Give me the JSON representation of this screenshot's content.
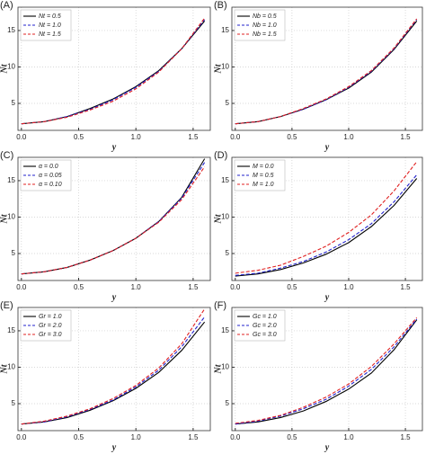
{
  "chart_data": [
    {
      "type": "line",
      "label": "(A)",
      "xlabel": "y",
      "ylabel": "Nt",
      "x": [
        0,
        0.2,
        0.4,
        0.6,
        0.8,
        1.0,
        1.2,
        1.4,
        1.6
      ],
      "xlim": [
        -0.03,
        1.65
      ],
      "ylim": [
        1.3,
        18.2
      ],
      "grid": true,
      "legend": "upper-left",
      "xticks": [
        {
          "value": 0,
          "label": "0.0"
        },
        {
          "value": 0.5,
          "label": "0.5"
        },
        {
          "value": 1,
          "label": "1.0"
        },
        {
          "value": 1.5,
          "label": "1.5"
        }
      ],
      "yticks": [
        5,
        10,
        15
      ],
      "series": [
        {
          "name": "Nt = 0.5",
          "color": "#000000",
          "dash": "solid",
          "values": [
            2.2,
            2.5,
            3.2,
            4.3,
            5.6,
            7.3,
            9.5,
            12.5,
            16.3
          ]
        },
        {
          "name": "Nt = 1.0",
          "color": "#2222cc",
          "dash": "dashed",
          "values": [
            2.2,
            2.5,
            3.2,
            4.2,
            5.5,
            7.2,
            9.4,
            12.5,
            16.5
          ]
        },
        {
          "name": "Nt = 1.5",
          "color": "#e02020",
          "dash": "dashed",
          "values": [
            2.2,
            2.5,
            3.1,
            4.1,
            5.3,
            7.0,
            9.3,
            12.5,
            16.7
          ]
        }
      ]
    },
    {
      "type": "line",
      "label": "(B)",
      "xlabel": "y",
      "ylabel": "Nt",
      "x": [
        0,
        0.2,
        0.4,
        0.6,
        0.8,
        1.0,
        1.2,
        1.4,
        1.6
      ],
      "xlim": [
        -0.03,
        1.65
      ],
      "ylim": [
        1.3,
        18.2
      ],
      "grid": true,
      "legend": "upper-left",
      "xticks": [
        {
          "value": 0,
          "label": "0.0"
        },
        {
          "value": 0.5,
          "label": "0.5"
        },
        {
          "value": 1,
          "label": "1.0"
        },
        {
          "value": 1.5,
          "label": "1.5"
        }
      ],
      "yticks": [
        5,
        10,
        15
      ],
      "series": [
        {
          "name": "Nb = 0.5",
          "color": "#000000",
          "dash": "solid",
          "values": [
            2.2,
            2.5,
            3.2,
            4.2,
            5.5,
            7.1,
            9.3,
            12.4,
            16.3
          ]
        },
        {
          "name": "Nb = 1.0",
          "color": "#2222cc",
          "dash": "dashed",
          "values": [
            2.2,
            2.5,
            3.2,
            4.2,
            5.5,
            7.2,
            9.4,
            12.5,
            16.5
          ]
        },
        {
          "name": "Nb = 1.5",
          "color": "#e02020",
          "dash": "dashed",
          "values": [
            2.2,
            2.5,
            3.2,
            4.3,
            5.6,
            7.3,
            9.5,
            12.6,
            16.6
          ]
        }
      ]
    },
    {
      "type": "line",
      "label": "(C)",
      "xlabel": "y",
      "ylabel": "Nt",
      "x": [
        0,
        0.2,
        0.4,
        0.6,
        0.8,
        1.0,
        1.2,
        1.4,
        1.6
      ],
      "xlim": [
        -0.03,
        1.65
      ],
      "ylim": [
        1.3,
        18.2
      ],
      "grid": true,
      "legend": "upper-left",
      "xticks": [
        {
          "value": 0,
          "label": "0.0"
        },
        {
          "value": 0.5,
          "label": "0.5"
        },
        {
          "value": 1,
          "label": "1.0"
        },
        {
          "value": 1.5,
          "label": "1.5"
        }
      ],
      "yticks": [
        5,
        10,
        15
      ],
      "series": [
        {
          "name": "α = 0.0",
          "color": "#000000",
          "dash": "solid",
          "values": [
            2.2,
            2.5,
            3.1,
            4.1,
            5.4,
            7.1,
            9.4,
            12.7,
            18.0
          ]
        },
        {
          "name": "α = 0.05",
          "color": "#2222cc",
          "dash": "dashed",
          "values": [
            2.2,
            2.5,
            3.1,
            4.1,
            5.4,
            7.1,
            9.4,
            12.6,
            17.5
          ]
        },
        {
          "name": "α = 0.10",
          "color": "#e02020",
          "dash": "dashed",
          "values": [
            2.2,
            2.5,
            3.1,
            4.1,
            5.4,
            7.1,
            9.3,
            12.4,
            16.9
          ]
        }
      ]
    },
    {
      "type": "line",
      "label": "(D)",
      "xlabel": "y",
      "ylabel": "Nt",
      "x": [
        0,
        0.2,
        0.4,
        0.6,
        0.8,
        1.0,
        1.2,
        1.4,
        1.6
      ],
      "xlim": [
        -0.03,
        1.65
      ],
      "ylim": [
        1.3,
        18.2
      ],
      "grid": true,
      "legend": "upper-left",
      "xticks": [
        {
          "value": 0,
          "label": "0.0"
        },
        {
          "value": 0.5,
          "label": "0.5"
        },
        {
          "value": 1,
          "label": "1.0"
        },
        {
          "value": 1.5,
          "label": "1.5"
        }
      ],
      "yticks": [
        5,
        10,
        15
      ],
      "series": [
        {
          "name": "M = 0.0",
          "color": "#000000",
          "dash": "solid",
          "values": [
            1.9,
            2.2,
            2.8,
            3.7,
            4.9,
            6.5,
            8.7,
            11.6,
            15.3
          ]
        },
        {
          "name": "M = 0.5",
          "color": "#2222cc",
          "dash": "dashed",
          "values": [
            2.0,
            2.3,
            3.0,
            3.9,
            5.2,
            6.9,
            9.1,
            12.1,
            15.8
          ]
        },
        {
          "name": "M = 1.0",
          "color": "#e02020",
          "dash": "dashed",
          "values": [
            2.3,
            2.7,
            3.4,
            4.6,
            6.0,
            7.9,
            10.3,
            13.6,
            17.6
          ]
        }
      ]
    },
    {
      "type": "line",
      "label": "(E)",
      "xlabel": "y",
      "ylabel": "Nt",
      "x": [
        0,
        0.2,
        0.4,
        0.6,
        0.8,
        1.0,
        1.2,
        1.4,
        1.6
      ],
      "xlim": [
        -0.03,
        1.65
      ],
      "ylim": [
        1.3,
        18.2
      ],
      "grid": true,
      "legend": "upper-left",
      "xticks": [
        {
          "value": 0,
          "label": "0.0"
        },
        {
          "value": 0.5,
          "label": "0.5"
        },
        {
          "value": 1,
          "label": "1.0"
        },
        {
          "value": 1.5,
          "label": "1.5"
        }
      ],
      "yticks": [
        5,
        10,
        15
      ],
      "series": [
        {
          "name": "Gr = 1.0",
          "color": "#000000",
          "dash": "solid",
          "values": [
            2.2,
            2.5,
            3.1,
            4.1,
            5.4,
            7.1,
            9.3,
            12.3,
            16.2
          ]
        },
        {
          "name": "Gr = 2.0",
          "color": "#2222cc",
          "dash": "dashed",
          "values": [
            2.2,
            2.5,
            3.2,
            4.2,
            5.5,
            7.3,
            9.6,
            12.8,
            16.9
          ]
        },
        {
          "name": "Gr = 3.0",
          "color": "#e02020",
          "dash": "dashed",
          "values": [
            2.2,
            2.6,
            3.3,
            4.3,
            5.7,
            7.5,
            9.9,
            13.2,
            18.0
          ]
        }
      ]
    },
    {
      "type": "line",
      "label": "(F)",
      "xlabel": "y",
      "ylabel": "Nt",
      "x": [
        0,
        0.2,
        0.4,
        0.6,
        0.8,
        1.0,
        1.2,
        1.4,
        1.6
      ],
      "xlim": [
        -0.03,
        1.65
      ],
      "ylim": [
        1.3,
        18.2
      ],
      "grid": true,
      "legend": "upper-left",
      "xticks": [
        {
          "value": 0,
          "label": "0.0"
        },
        {
          "value": 0.5,
          "label": "0.5"
        },
        {
          "value": 1,
          "label": "1.0"
        },
        {
          "value": 1.5,
          "label": "1.5"
        }
      ],
      "yticks": [
        5,
        10,
        15
      ],
      "series": [
        {
          "name": "Gc = 1.0",
          "color": "#000000",
          "dash": "solid",
          "values": [
            2.2,
            2.5,
            3.1,
            4.0,
            5.3,
            7.0,
            9.2,
            12.4,
            16.5
          ]
        },
        {
          "name": "Gc = 2.0",
          "color": "#2222cc",
          "dash": "dashed",
          "values": [
            2.2,
            2.6,
            3.3,
            4.3,
            5.6,
            7.4,
            9.7,
            12.8,
            16.6
          ]
        },
        {
          "name": "Gc = 3.0",
          "color": "#e02020",
          "dash": "dashed",
          "values": [
            2.3,
            2.7,
            3.4,
            4.5,
            5.9,
            7.7,
            10.1,
            13.2,
            16.8
          ]
        }
      ]
    }
  ]
}
